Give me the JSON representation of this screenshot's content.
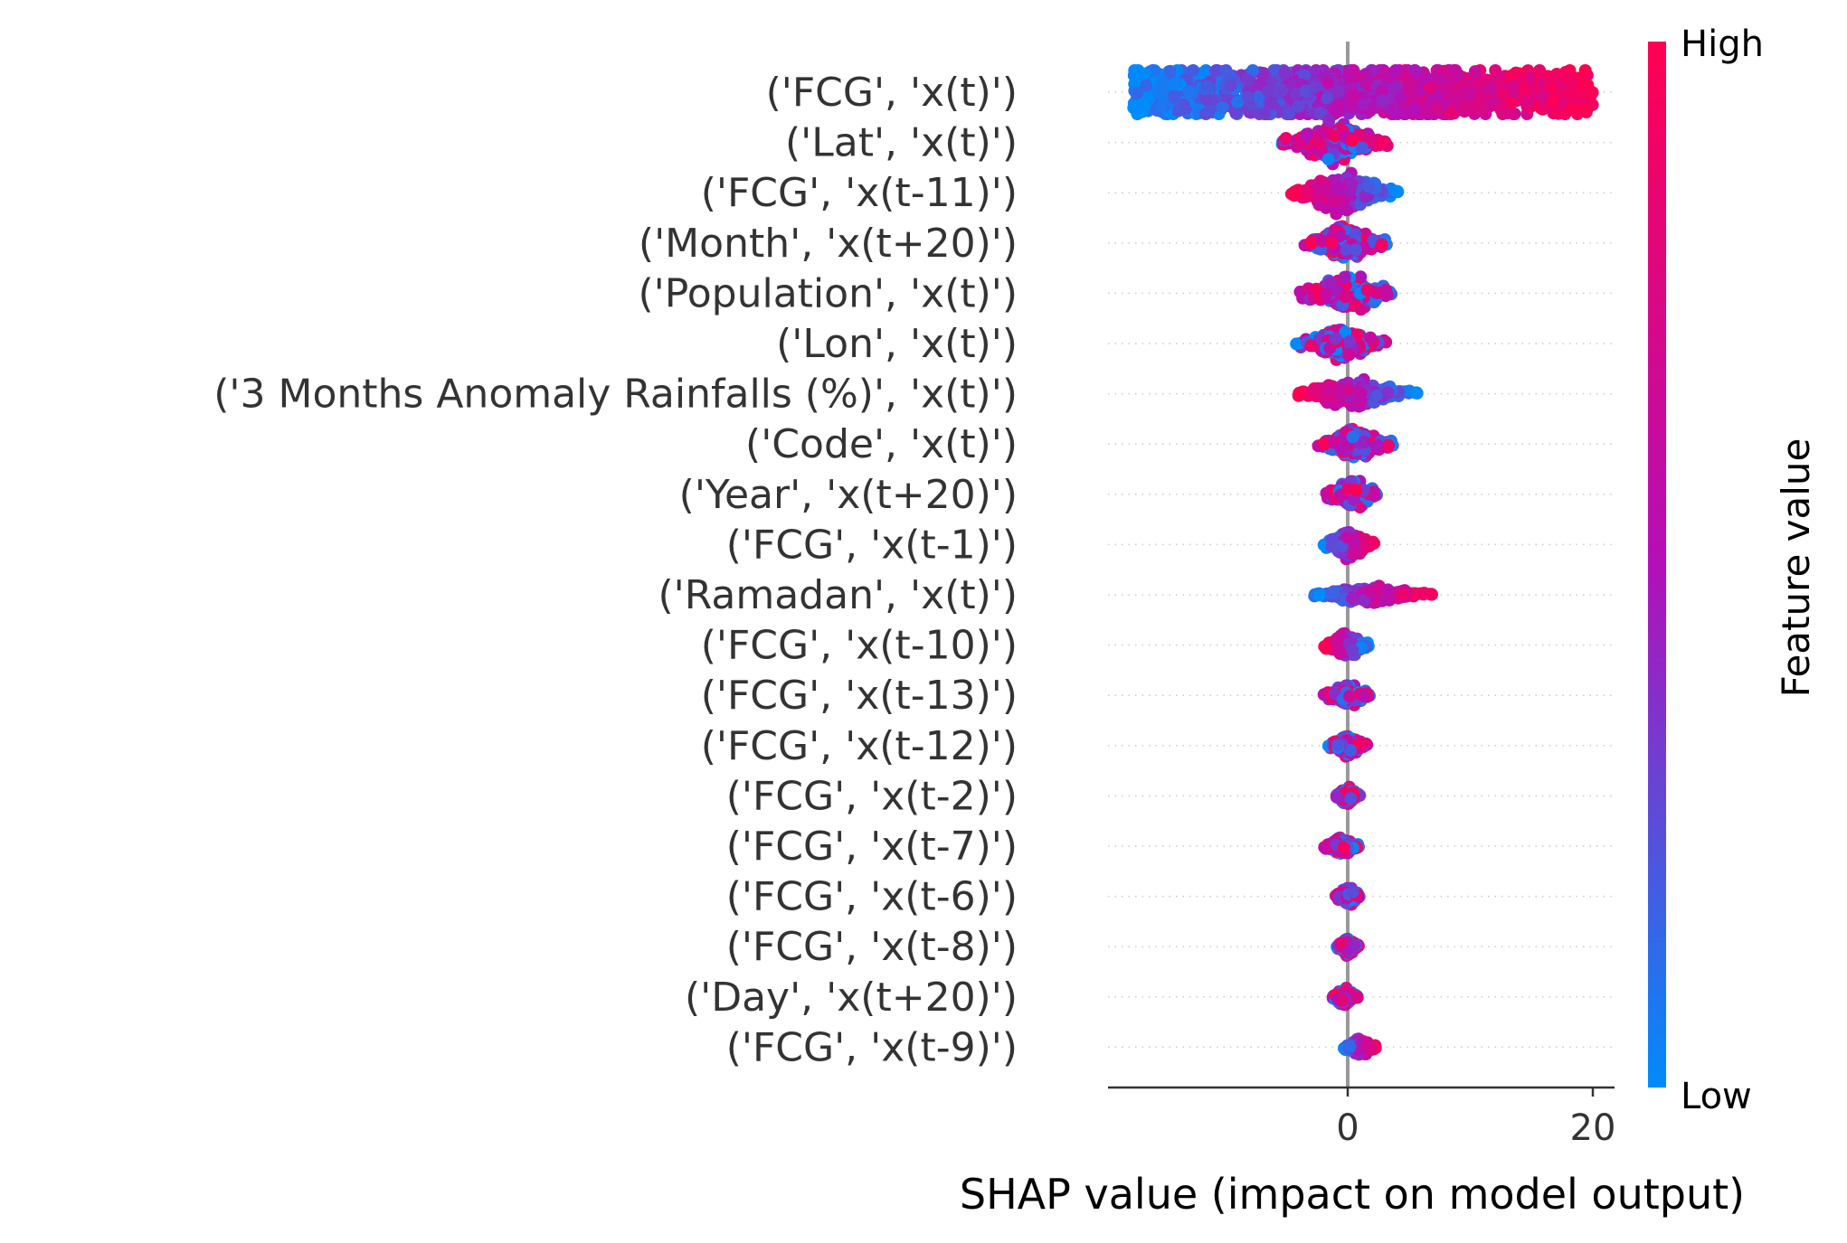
{
  "chart_data": {
    "type": "scatter",
    "subtype": "shap-beeswarm",
    "title": "",
    "xlabel": "SHAP value (impact on model output)",
    "ylabel": "",
    "xlim": [
      -19.5,
      21.5
    ],
    "xticks": [
      0,
      20
    ],
    "xtick_labels": [
      "0",
      "20"
    ],
    "colorbar": {
      "title": "Feature value",
      "high_label": "High",
      "low_label": "Low",
      "low_color": "#008bfb",
      "mid_color": "#b40fb8",
      "high_color": "#ff0052"
    },
    "features": [
      {
        "label": "('FCG', 'x(t)')",
        "min": -17.5,
        "max": 20.0,
        "dir": 1,
        "spread": 1.0
      },
      {
        "label": "('Lat', 'x(t)')",
        "min": -5.5,
        "max": 3.5,
        "dir": 0,
        "spread": 0.55
      },
      {
        "label": "('FCG', 'x(t-11)')",
        "min": -4.8,
        "max": 4.2,
        "dir": -1,
        "spread": 0.55
      },
      {
        "label": "('Month', 'x(t+20)')",
        "min": -3.5,
        "max": 3.2,
        "dir": 0,
        "spread": 0.5
      },
      {
        "label": "('Population', 'x(t)')",
        "min": -4.0,
        "max": 3.8,
        "dir": 0,
        "spread": 0.5
      },
      {
        "label": "('Lon', 'x(t)')",
        "min": -4.3,
        "max": 3.2,
        "dir": 0,
        "spread": 0.45
      },
      {
        "label": "('3 Months Anomaly Rainfalls (%)', 'x(t)')",
        "min": -4.5,
        "max": 5.8,
        "dir": -1,
        "spread": 0.4
      },
      {
        "label": "('Code', 'x(t)')",
        "min": -2.4,
        "max": 3.7,
        "dir": 0,
        "spread": 0.45
      },
      {
        "label": "('Year', 'x(t+20)')",
        "min": -1.8,
        "max": 2.5,
        "dir": 0,
        "spread": 0.4
      },
      {
        "label": "('FCG', 'x(t-1)')",
        "min": -2.0,
        "max": 2.2,
        "dir": 1,
        "spread": 0.4
      },
      {
        "label": "('Ramadan', 'x(t)')",
        "min": -3.2,
        "max": 7.0,
        "dir": 1,
        "spread": 0.25
      },
      {
        "label": "('FCG', 'x(t-10)')",
        "min": -1.9,
        "max": 1.7,
        "dir": -1,
        "spread": 0.35
      },
      {
        "label": "('FCG', 'x(t-13)')",
        "min": -2.0,
        "max": 1.9,
        "dir": 0,
        "spread": 0.3
      },
      {
        "label": "('FCG', 'x(t-12)')",
        "min": -1.6,
        "max": 1.6,
        "dir": 0,
        "spread": 0.3
      },
      {
        "label": "('FCG', 'x(t-2)')",
        "min": -1.0,
        "max": 1.0,
        "dir": 0,
        "spread": 0.25
      },
      {
        "label": "('FCG', 'x(t-7)')",
        "min": -1.9,
        "max": 0.9,
        "dir": 0,
        "spread": 0.25
      },
      {
        "label": "('FCG', 'x(t-6)')",
        "min": -1.0,
        "max": 1.0,
        "dir": 0,
        "spread": 0.25
      },
      {
        "label": "('FCG', 'x(t-8)')",
        "min": -0.9,
        "max": 0.9,
        "dir": 0,
        "spread": 0.25
      },
      {
        "label": "('Day', 'x(t+20)')",
        "min": -1.3,
        "max": 0.8,
        "dir": 0,
        "spread": 0.25
      },
      {
        "label": "('FCG', 'x(t-9)')",
        "min": -0.3,
        "max": 2.3,
        "dir": 1,
        "spread": 0.25
      }
    ],
    "grid": "dotted-row-lines",
    "zero_line": true
  }
}
